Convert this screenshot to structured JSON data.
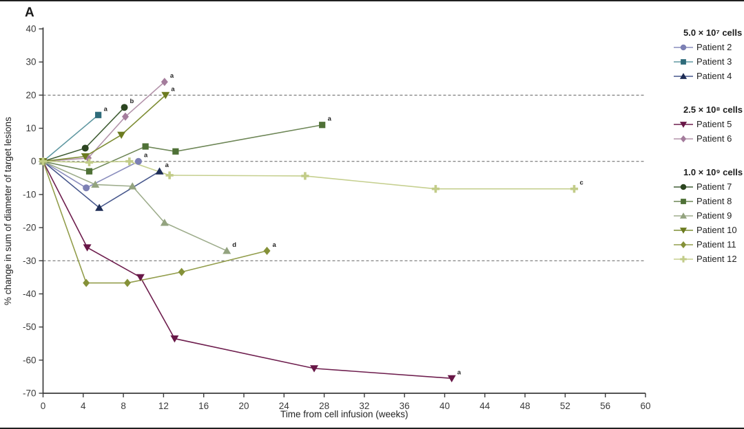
{
  "panel_label": "A",
  "chart_data": {
    "type": "line",
    "title": "",
    "xlabel": "Time from cell infusion (weeks)",
    "ylabel": "% change in sum of diameter of target lesions",
    "xlim": [
      0,
      60
    ],
    "ylim": [
      -70,
      40
    ],
    "xticks": [
      0,
      4,
      8,
      12,
      16,
      20,
      24,
      28,
      32,
      36,
      40,
      44,
      48,
      52,
      56,
      60
    ],
    "yticks": [
      -70,
      -60,
      -50,
      -40,
      -30,
      -20,
      -10,
      0,
      10,
      20,
      30,
      40
    ],
    "reference_lines": [
      20,
      0,
      -30
    ],
    "grid": "off",
    "legend_position": "right",
    "groups": [
      {
        "title": "5.0 × 10⁷ cells",
        "patients": [
          "Patient 2",
          "Patient 3",
          "Patient 4"
        ]
      },
      {
        "title": "2.5 × 10⁸ cells",
        "patients": [
          "Patient 5",
          "Patient 6"
        ]
      },
      {
        "title": "1.0 × 10⁹ cells",
        "patients": [
          "Patient 7",
          "Patient 8",
          "Patient 9",
          "Patient 10",
          "Patient 11",
          "Patient 12"
        ]
      }
    ],
    "series": [
      {
        "name": "Patient 2",
        "group": "5.0 × 10⁷ cells",
        "marker": "circle",
        "color": "#7c80b4",
        "line_color": "#8a8dbd",
        "points": [
          [
            0,
            0
          ],
          [
            4.3,
            -8
          ],
          [
            9.5,
            0
          ]
        ],
        "end_label": "a"
      },
      {
        "name": "Patient 3",
        "group": "5.0 × 10⁷ cells",
        "marker": "square",
        "color": "#2e6b7a",
        "line_color": "#5e97a1",
        "points": [
          [
            0,
            0
          ],
          [
            5.5,
            14
          ]
        ],
        "end_label": "a"
      },
      {
        "name": "Patient 4",
        "group": "5.0 × 10⁷ cells",
        "marker": "triangle-up",
        "color": "#1e2d55",
        "line_color": "#47578c",
        "points": [
          [
            0,
            0
          ],
          [
            5.6,
            -14
          ],
          [
            11.6,
            -3
          ]
        ],
        "end_label": "a"
      },
      {
        "name": "Patient 5",
        "group": "2.5 × 10⁸ cells",
        "marker": "triangle-down",
        "color": "#681747",
        "line_color": "#6e1e4e",
        "points": [
          [
            0,
            0
          ],
          [
            4.4,
            -26
          ],
          [
            9.7,
            -35
          ],
          [
            13.1,
            -53.5
          ],
          [
            27,
            -62.5
          ],
          [
            40.7,
            -65.5
          ]
        ],
        "end_label": "a"
      },
      {
        "name": "Patient 6",
        "group": "2.5 × 10⁸ cells",
        "marker": "diamond",
        "color": "#a47c9c",
        "line_color": "#b393aa",
        "points": [
          [
            0,
            0
          ],
          [
            4.5,
            1
          ],
          [
            8.2,
            13.5
          ],
          [
            12.1,
            24
          ]
        ],
        "end_label": "a"
      },
      {
        "name": "Patient 7",
        "group": "1.0 × 10⁹ cells",
        "marker": "circle",
        "color": "#2c4520",
        "line_color": "#3f5c33",
        "points": [
          [
            0,
            0
          ],
          [
            4.2,
            4
          ],
          [
            8.1,
            16.3
          ]
        ],
        "end_label": "b"
      },
      {
        "name": "Patient 8",
        "group": "1.0 × 10⁹ cells",
        "marker": "square",
        "color": "#4f7137",
        "line_color": "#6d8656",
        "points": [
          [
            0,
            0
          ],
          [
            4.6,
            -3
          ],
          [
            10.2,
            4.5
          ],
          [
            13.2,
            3
          ],
          [
            27.8,
            11
          ]
        ],
        "end_label": "a"
      },
      {
        "name": "Patient 9",
        "group": "1.0 × 10⁹ cells",
        "marker": "triangle-up",
        "color": "#93a37f",
        "line_color": "#9dac8b",
        "points": [
          [
            0,
            0
          ],
          [
            5.2,
            -7
          ],
          [
            8.9,
            -7.5
          ],
          [
            12.1,
            -18.5
          ],
          [
            18.3,
            -27
          ]
        ],
        "end_label": "d"
      },
      {
        "name": "Patient 10",
        "group": "1.0 × 10⁹ cells",
        "marker": "triangle-down",
        "color": "#6c7b20",
        "line_color": "#7e8d34",
        "points": [
          [
            0,
            0
          ],
          [
            4.2,
            1.5
          ],
          [
            7.8,
            8
          ],
          [
            12.2,
            20
          ]
        ],
        "end_label": "a"
      },
      {
        "name": "Patient 11",
        "group": "1.0 × 10⁹ cells",
        "marker": "diamond",
        "color": "#859138",
        "line_color": "#929d4b",
        "points": [
          [
            0,
            0
          ],
          [
            4.3,
            -36.7
          ],
          [
            8.4,
            -36.7
          ],
          [
            13.8,
            -33.4
          ],
          [
            22.3,
            -27
          ]
        ],
        "end_label": "a"
      },
      {
        "name": "Patient 12",
        "group": "1.0 × 10⁹ cells",
        "marker": "plus",
        "color": "#c2cc88",
        "line_color": "#c5cf8e",
        "points": [
          [
            0,
            0
          ],
          [
            4.6,
            -0.3
          ],
          [
            8.6,
            0
          ],
          [
            12.6,
            -4.2
          ],
          [
            26.1,
            -4.4
          ],
          [
            39.1,
            -8.3
          ],
          [
            52.9,
            -8.3
          ]
        ],
        "end_label": "c"
      }
    ]
  }
}
